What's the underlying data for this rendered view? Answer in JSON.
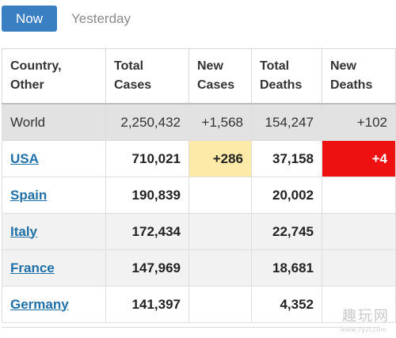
{
  "tabs": {
    "now": "Now",
    "yesterday": "Yesterday"
  },
  "table": {
    "headers": [
      {
        "line1": "Country,",
        "line2": "Other"
      },
      {
        "line1": "Total",
        "line2": "Cases"
      },
      {
        "line1": "New",
        "line2": "Cases"
      },
      {
        "line1": "Total",
        "line2": "Deaths"
      },
      {
        "line1": "New",
        "line2": "Deaths"
      }
    ],
    "world": {
      "country": "World",
      "total_cases": "2,250,432",
      "new_cases": "+1,568",
      "total_deaths": "154,247",
      "new_deaths": "+102"
    },
    "rows": [
      {
        "country": "USA",
        "total_cases": "710,021",
        "new_cases": "+286",
        "total_deaths": "37,158",
        "new_deaths": "+4"
      },
      {
        "country": "Spain",
        "total_cases": "190,839",
        "new_cases": "",
        "total_deaths": "20,002",
        "new_deaths": ""
      },
      {
        "country": "Italy",
        "total_cases": "172,434",
        "new_cases": "",
        "total_deaths": "22,745",
        "new_deaths": ""
      },
      {
        "country": "France",
        "total_cases": "147,969",
        "new_cases": "",
        "total_deaths": "18,681",
        "new_deaths": ""
      },
      {
        "country": "Germany",
        "total_cases": "141,397",
        "new_cases": "",
        "total_deaths": "4,352",
        "new_deaths": ""
      }
    ]
  },
  "colors": {
    "tab_active": "#3a7fc1",
    "link": "#1f6fa8",
    "new_cases_highlight": "#fdeaa8",
    "new_deaths_highlight": "#ee1111",
    "world_row": "#e2e2e2"
  },
  "watermark": {
    "text": "趣玩网",
    "url": "www.7y2l.com"
  }
}
